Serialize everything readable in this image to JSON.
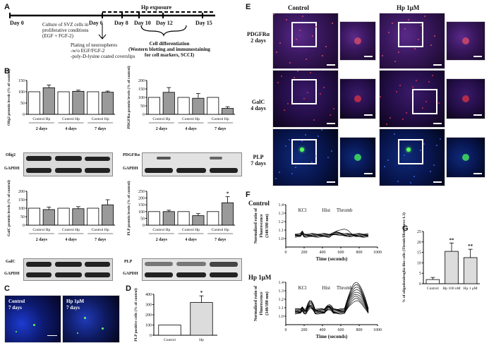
{
  "panels": {
    "A": "A",
    "B": "B",
    "C": "C",
    "D": "D",
    "E": "E",
    "F": "F",
    "G": "G"
  },
  "timeline": {
    "days": [
      "Day 0",
      "Day 6",
      "Day 8",
      "Day 10",
      "Day 12",
      "Day 15"
    ],
    "hp_label": "Hp exposure",
    "culture_text": [
      "Culture of SVZ cells in",
      "proliferative conditions",
      "(EGF + FGF-2)"
    ],
    "plating_text": [
      "Plating of neurospheres",
      "-w/o EGF/FGF-2",
      "-poly-D-lysine coated coverslips"
    ],
    "diff_text": [
      "Cell differentiation",
      "(Western blotting and immunostaining",
      "for cell markers, SCCI)"
    ]
  },
  "bar_groups": {
    "categories": [
      "Control",
      "Hp",
      "Control",
      "Hp",
      "Control",
      "Hp"
    ],
    "timepoints": [
      "2 days",
      "4 days",
      "7 days"
    ]
  },
  "blot_labels": {
    "olig2": "Olig2",
    "gapdh": "GAPDH",
    "pdgfra": "PDGFRα",
    "galc": "GalC",
    "plp": "PLP"
  },
  "chart_data": [
    {
      "type": "bar",
      "id": "olig2",
      "ylabel": "Olig2 protein levels (% of control)",
      "ylim": [
        0,
        150
      ],
      "yticks": [
        0,
        50,
        100,
        150
      ],
      "categories": [
        "Control",
        "Hp",
        "Control",
        "Hp",
        "Control",
        "Hp"
      ],
      "values": [
        100,
        118,
        100,
        102,
        100,
        98
      ],
      "errors": [
        0,
        12,
        0,
        5,
        0,
        5
      ]
    },
    {
      "type": "bar",
      "id": "pdgfra",
      "ylabel": "PDGFRα protein levels (% of control)",
      "ylim": [
        0,
        200
      ],
      "yticks": [
        0,
        50,
        100,
        150,
        200
      ],
      "categories": [
        "Control",
        "Hp",
        "Control",
        "Hp",
        "Control",
        "Hp"
      ],
      "values": [
        100,
        130,
        100,
        95,
        100,
        35
      ],
      "errors": [
        0,
        28,
        0,
        28,
        0,
        10
      ]
    },
    {
      "type": "bar",
      "id": "galc",
      "ylabel": "GalC protein levels (% of control)",
      "ylim": [
        0,
        200
      ],
      "yticks": [
        0,
        50,
        100,
        150,
        200
      ],
      "categories": [
        "Control",
        "Hp",
        "Control",
        "Hp",
        "Control",
        "Hp"
      ],
      "values": [
        100,
        92,
        100,
        97,
        100,
        120
      ],
      "errors": [
        0,
        15,
        0,
        12,
        0,
        30
      ]
    },
    {
      "type": "bar",
      "id": "plp",
      "ylabel": "PLP protein levels (% of control)",
      "ylim": [
        0,
        250
      ],
      "yticks": [
        0,
        50,
        100,
        150,
        200,
        250
      ],
      "categories": [
        "Control",
        "Hp",
        "Control",
        "Hp",
        "Control",
        "Hp"
      ],
      "values": [
        100,
        100,
        100,
        70,
        100,
        165
      ],
      "errors": [
        0,
        10,
        0,
        15,
        0,
        45
      ],
      "sig": "*"
    },
    {
      "type": "bar",
      "id": "plp_cells",
      "ylabel": "PLP positive cells (% of control)",
      "ylim": [
        0,
        400
      ],
      "yticks": [
        0,
        100,
        200,
        300,
        400
      ],
      "categories": [
        "Control",
        "Hp"
      ],
      "values": [
        100,
        320
      ],
      "errors": [
        0,
        65
      ],
      "sig": "*"
    },
    {
      "type": "line",
      "id": "calcium",
      "xlim": [
        0,
        1000
      ],
      "ylim": [
        0.9,
        1.4
      ],
      "xlabel": "Time (seconds)",
      "ylabel": "Normalized ratio of Fluorescence (340/380 nm)"
    },
    {
      "type": "bar",
      "id": "responders",
      "ylabel": "% of oligodendroglia-like cells (Thrmb/Hist above 1.3)",
      "ylim": [
        0,
        25
      ],
      "yticks": [
        0,
        5,
        10,
        15,
        20,
        25
      ],
      "categories": [
        "Control",
        "Hp 100 nM",
        "Hp 1 μM"
      ],
      "values": [
        2,
        15.5,
        12.5
      ],
      "errors": [
        1,
        4,
        4
      ],
      "sig": "**"
    }
  ],
  "calcium": {
    "xticks": [
      "0",
      "200",
      "400",
      "600",
      "800",
      "1000"
    ],
    "yticks": [
      "1.0",
      "1.1",
      "1.2",
      "1.3",
      "1.4"
    ],
    "events": [
      "KCl",
      "Hist",
      "Thromb"
    ],
    "control_title": "Control",
    "hp_title": "Hp 1μM",
    "ylabel1": "Normalized ratio of",
    "ylabel2": "Fluorescence",
    "ylabel3": "(340/380 nm)"
  },
  "panelE": {
    "col_control": "Control",
    "col_hp": "Hp 1μM",
    "rows": [
      {
        "name": "PDGFRα",
        "time": "2 days"
      },
      {
        "name": "GalC",
        "time": "4 days"
      },
      {
        "name": "PLP",
        "time": "7 days"
      }
    ]
  },
  "panelC": {
    "control": "Control",
    "hp": "Hp 1μM",
    "time": "7 days"
  },
  "colors": {
    "blue_stain": "#1a2ea0",
    "red_stain": "#c0304a",
    "green_stain": "#40e060",
    "gray_bar": "#9a9a9a",
    "light_bar": "#dcdcdc"
  }
}
